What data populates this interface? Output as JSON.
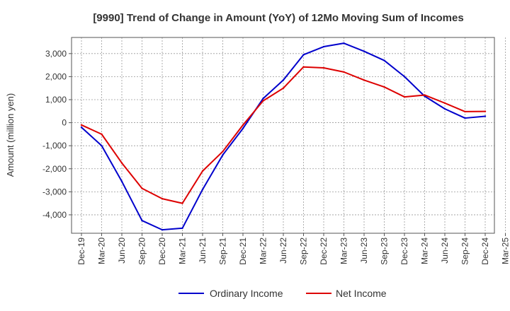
{
  "chart_data": {
    "type": "line",
    "title": "[9990]  Trend of Change in Amount (YoY) of 12Mo Moving Sum of Incomes",
    "xlabel": "",
    "ylabel": "Amount (million yen)",
    "ylim": [
      -4800,
      3700
    ],
    "yticks": [
      3000,
      2000,
      1000,
      0,
      -1000,
      -2000,
      -3000,
      -4000
    ],
    "ytick_labels": [
      "3,000",
      "2,000",
      "1,000",
      "0",
      "-1,000",
      "-2,000",
      "-3,000",
      "-4,000"
    ],
    "categories": [
      "Dec-19",
      "Mar-20",
      "Jun-20",
      "Sep-20",
      "Dec-20",
      "Mar-21",
      "Jun-21",
      "Sep-21",
      "Dec-21",
      "Mar-22",
      "Jun-22",
      "Sep-22",
      "Dec-22",
      "Mar-23",
      "Jun-23",
      "Sep-23",
      "Dec-23",
      "Mar-24",
      "Jun-24",
      "Sep-24",
      "Dec-24",
      "Mar-25"
    ],
    "grid": true,
    "legend_position": "bottom",
    "series": [
      {
        "name": "Ordinary Income",
        "color": "#0000cc",
        "values": [
          -200,
          -1000,
          -2550,
          -4250,
          -4650,
          -4580,
          -2900,
          -1400,
          -250,
          1050,
          1850,
          2950,
          3300,
          3450,
          3100,
          2700,
          2000,
          1150,
          600,
          200,
          280,
          null
        ]
      },
      {
        "name": "Net Income",
        "color": "#dd0000",
        "values": [
          -100,
          -500,
          -1750,
          -2850,
          -3300,
          -3500,
          -2100,
          -1250,
          -100,
          950,
          1500,
          2420,
          2380,
          2200,
          1850,
          1550,
          1120,
          1200,
          850,
          480,
          490,
          null
        ]
      }
    ]
  }
}
